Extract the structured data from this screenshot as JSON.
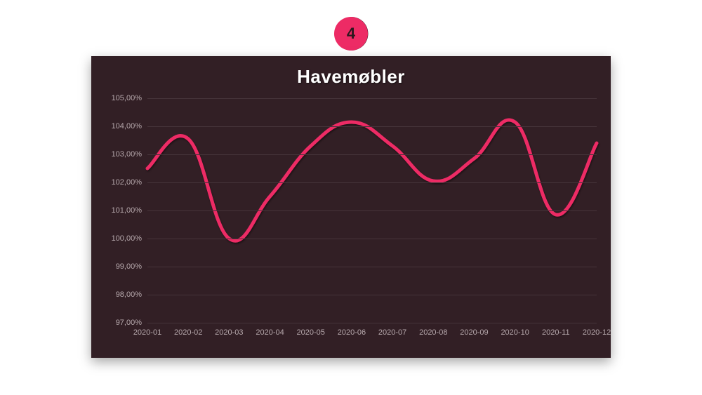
{
  "badge": {
    "number": "4",
    "fill_color": "#ed2b65",
    "ring_color": "#2b181e",
    "text_color": "#2b181e"
  },
  "chart": {
    "type": "line",
    "title": "Havemøbler",
    "title_color": "#ffffff",
    "title_fontsize": 26,
    "panel_background": "#321f25",
    "grid_color": "#46343a",
    "label_color": "#b7a9ad",
    "label_fontsize": 11,
    "line_color": "#ed2b65",
    "line_width": 5,
    "smooth": true,
    "ylim": [
      97,
      105
    ],
    "ytick_step": 1,
    "y_suffix": ",00%",
    "x_labels": [
      "2020-01",
      "2020-02",
      "2020-03",
      "2020-04",
      "2020-05",
      "2020-06",
      "2020-07",
      "2020-08",
      "2020-09",
      "2020-10",
      "2020-11",
      "2020-12"
    ],
    "values": [
      102.5,
      103.55,
      100.0,
      101.5,
      103.3,
      104.15,
      103.3,
      102.05,
      102.85,
      104.15,
      100.85,
      103.4
    ]
  }
}
